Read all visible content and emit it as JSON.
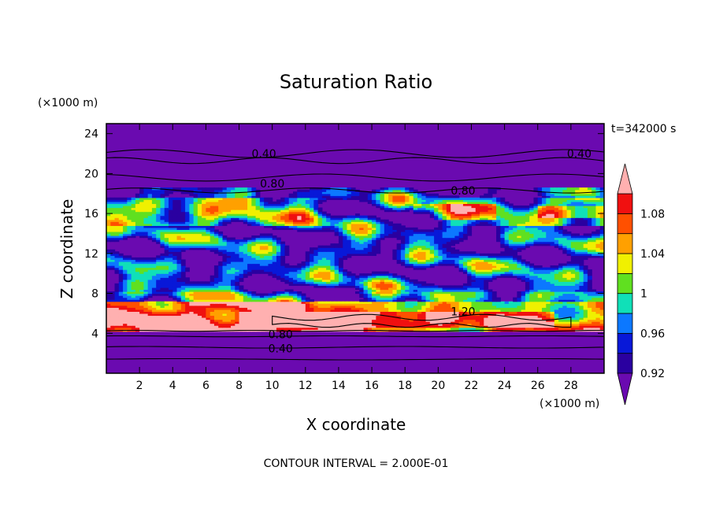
{
  "chart_data": {
    "type": "heatmap",
    "title": "Saturation Ratio",
    "xlabel": "X coordinate",
    "ylabel": "Z coordinate",
    "x_unit": "(×1000 m)",
    "y_unit": "(×1000 m)",
    "time_label": "t=342000 s",
    "footer": "CONTOUR INTERVAL = 2.000E-01",
    "xlim": [
      0,
      30
    ],
    "ylim": [
      0,
      25
    ],
    "x_ticks": [
      2,
      4,
      6,
      8,
      10,
      12,
      14,
      16,
      18,
      20,
      22,
      24,
      26,
      28
    ],
    "y_ticks": [
      4,
      8,
      12,
      16,
      20,
      24
    ],
    "colorbar": {
      "levels": [
        0.92,
        0.94,
        0.96,
        0.98,
        1.0,
        1.02,
        1.04,
        1.06,
        1.08,
        1.1
      ],
      "tick_labels": [
        "0.92",
        "0.96",
        "1",
        "1.04",
        "1.08"
      ],
      "tick_values": [
        0.92,
        0.96,
        1.0,
        1.04,
        1.08
      ],
      "colors": [
        "#6a0ab0",
        "#2a00a0",
        "#0818d8",
        "#0c78ff",
        "#10e0b8",
        "#60e020",
        "#f0f000",
        "#ffa000",
        "#ff5000",
        "#f01010",
        "#ffb0b0"
      ],
      "extend": "both"
    },
    "contour_labels": [
      {
        "text": "0.40",
        "x": 9.5,
        "z": 22.0
      },
      {
        "text": "0.40",
        "x": 28.5,
        "z": 22.0
      },
      {
        "text": "0.80",
        "x": 10.0,
        "z": 19.0
      },
      {
        "text": "0.80",
        "x": 21.5,
        "z": 18.3
      },
      {
        "text": "1.20",
        "x": 21.5,
        "z": 6.2
      },
      {
        "text": "0.80",
        "x": 10.5,
        "z": 3.9
      },
      {
        "text": "0.40",
        "x": 10.5,
        "z": 2.5
      }
    ],
    "regions": [
      {
        "desc": "upper dry layer",
        "z_range": [
          18.5,
          25
        ],
        "value": "<0.92"
      },
      {
        "desc": "mid-level moist band",
        "z_range": [
          8,
          18
        ],
        "value": "0.92-1.08"
      },
      {
        "desc": "supersaturated low layer",
        "z_range": [
          4.2,
          7.5
        ],
        "value": ">1.1"
      },
      {
        "desc": "surface dry layer",
        "z_range": [
          0,
          4.2
        ],
        "value": "<0.92"
      }
    ]
  }
}
